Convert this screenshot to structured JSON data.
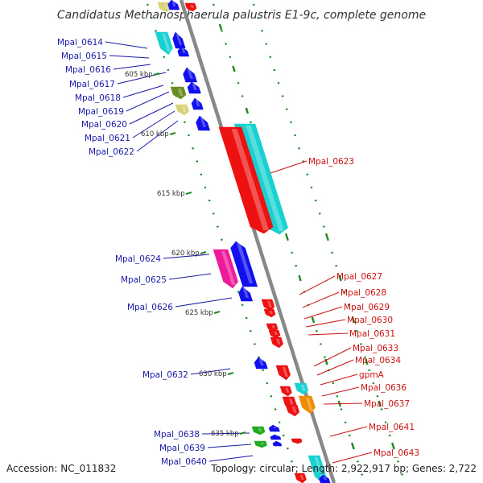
{
  "title": "Candidatus Methanosphaerula palustris E1-9c, complete genome",
  "accession": "Accession: NC_011832",
  "topology": "Topology: circular; Length: 2,922,917 bp; Genes: 2,722",
  "colors": {
    "backbone": "#888888",
    "tick": "#1f8a1f",
    "left_label": "#1a1aa6",
    "right_label": "#cc1111",
    "blue": "#1010ee",
    "cyan": "#1ad1d1",
    "red": "#ee1111",
    "magenta": "#ee1a99",
    "olive": "#6b8e23",
    "khaki": "#d8d27a",
    "green": "#22aa22",
    "orange": "#f08a00"
  },
  "kbp_labels": [
    "605 kbp",
    "610 kbp",
    "615 kbp",
    "620 kbp",
    "625 kbp",
    "630 kbp",
    "635 kbp"
  ],
  "left_labels": [
    "Mpal_0614",
    "Mpal_0615",
    "Mpal_0616",
    "Mpal_0617",
    "Mpal_0618",
    "Mpal_0619",
    "Mpal_0620",
    "Mpal_0621",
    "Mpal_0622",
    "Mpal_0624",
    "Mpal_0625",
    "Mpal_0626",
    "Mpal_0632",
    "Mpal_0638",
    "Mpal_0639",
    "Mpal_0640"
  ],
  "right_labels": [
    "Mpal_0623",
    "Mpal_0627",
    "Mpal_0628",
    "Mpal_0629",
    "Mpal_0630",
    "Mpal_0631",
    "Mpal_0633",
    "Mpal_0634",
    "gpmA",
    "Mpal_0636",
    "Mpal_0637",
    "Mpal_0641",
    "Mpal_0643"
  ]
}
